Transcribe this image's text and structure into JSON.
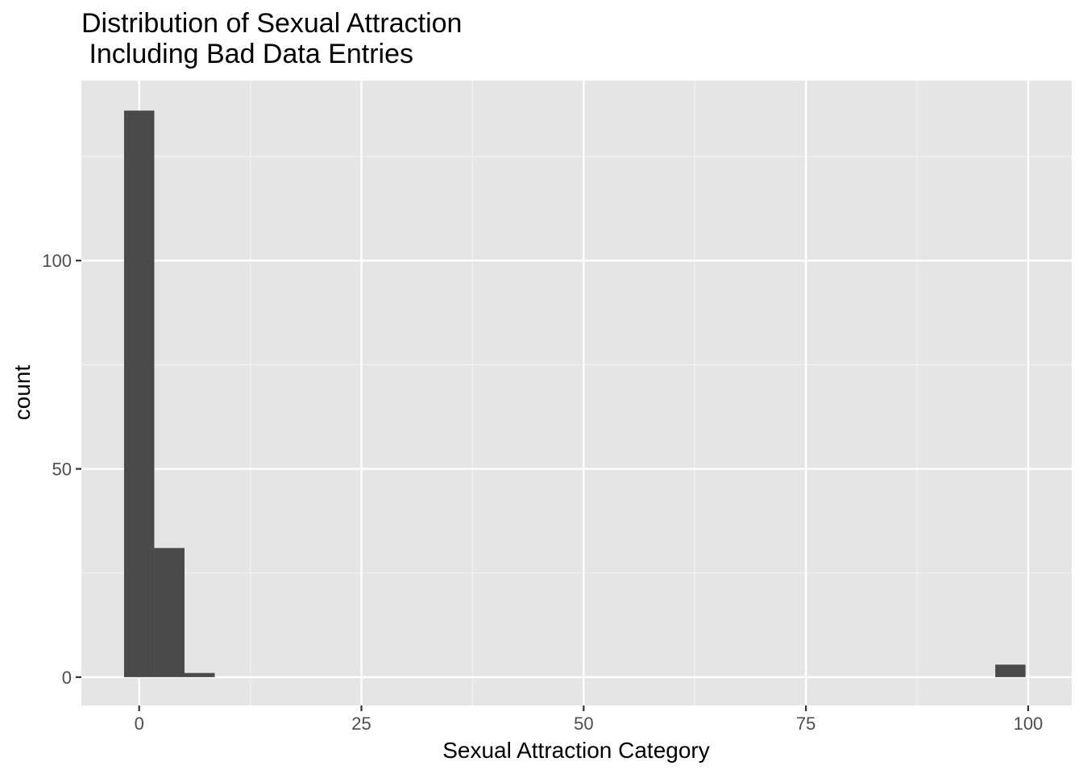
{
  "chart_data": {
    "type": "bar",
    "title_lines": [
      "Distribution of Sexual Attraction",
      " Including Bad Data Entries"
    ],
    "xlabel": "Sexual Attraction Category",
    "ylabel": "count",
    "xlim": [
      -6.5,
      104.9
    ],
    "ylim": [
      -6.8,
      143.2
    ],
    "x_ticks": [
      0,
      25,
      50,
      75,
      100
    ],
    "x_tick_labels": [
      "0",
      "25",
      "50",
      "75",
      "100"
    ],
    "x_minor_ticks": [
      12.5,
      37.5,
      62.5,
      87.5
    ],
    "y_ticks": [
      0,
      50,
      100
    ],
    "y_tick_labels": [
      "0",
      "50",
      "100"
    ],
    "y_minor_ticks": [
      25,
      75,
      125
    ],
    "grid": true,
    "bin_width": 3.41,
    "bins": [
      {
        "x_start": -1.7,
        "x_end": 1.7,
        "count": 136
      },
      {
        "x_start": 1.7,
        "x_end": 5.1,
        "count": 31
      },
      {
        "x_start": 5.1,
        "x_end": 8.5,
        "count": 1
      },
      {
        "x_start": 96.3,
        "x_end": 99.7,
        "count": 3
      }
    ],
    "colors": {
      "panel_background": "#e5e5e5",
      "grid_major": "#ffffff",
      "grid_minor": "#f2f2f2",
      "bar_fill": "#4a4a4a",
      "tick_mark": "#333333"
    }
  }
}
